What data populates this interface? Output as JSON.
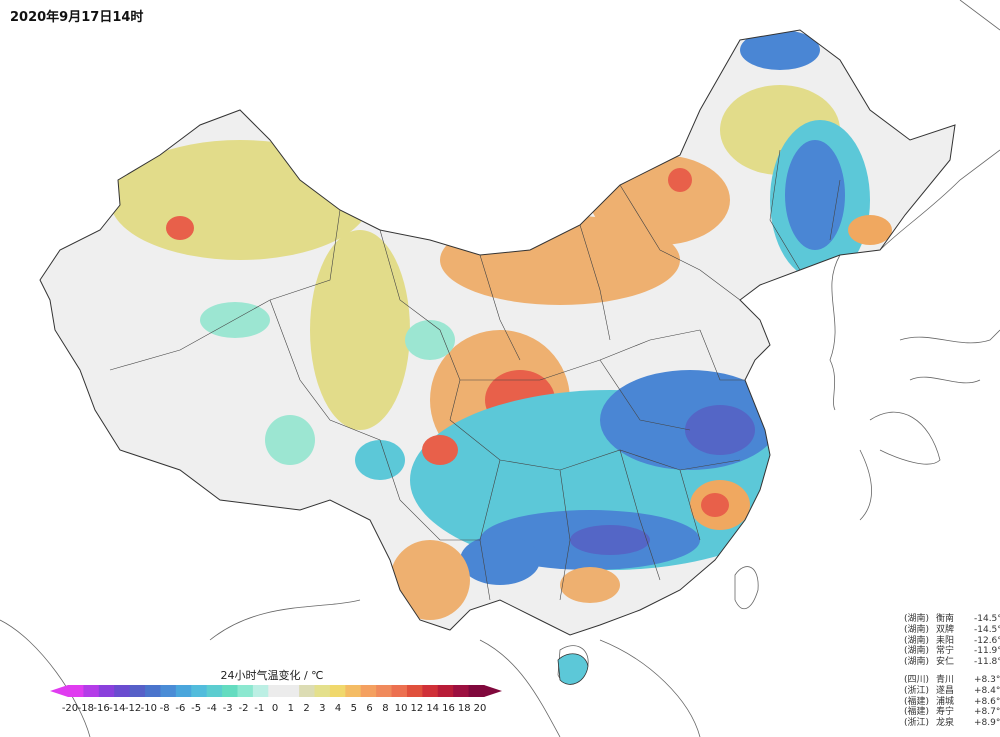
{
  "title": "2020年9月17日14时",
  "legend": {
    "title": "24小时气温变化 / ℃",
    "ticks": [
      "-20",
      "-18",
      "-16",
      "-14",
      "-12",
      "-10",
      "-8",
      "-6",
      "-5",
      "-4",
      "-3",
      "-2",
      "-1",
      "0",
      "1",
      "2",
      "3",
      "4",
      "5",
      "6",
      "8",
      "10",
      "12",
      "14",
      "16",
      "18",
      "20"
    ],
    "colors": [
      "#e03cf0",
      "#b43ce8",
      "#8a40dc",
      "#6a4cd0",
      "#5660c8",
      "#4a74cc",
      "#4a8cd6",
      "#4aa6dc",
      "#52bcdc",
      "#5ccdd0",
      "#64dcc0",
      "#8ce8d0",
      "#bcefe4",
      "#ececec",
      "#ececec",
      "#dcdcb4",
      "#e4e08c",
      "#f0d86c",
      "#f4bc64",
      "#f4a060",
      "#f08a5c",
      "#ec7050",
      "#e0503c",
      "#d03038",
      "#b81c38",
      "#9c1040",
      "#80083c"
    ]
  },
  "stations": {
    "cooling": [
      {
        "province": "(湖南)",
        "name": "衡南",
        "value": "-14.5°C"
      },
      {
        "province": "(湖南)",
        "name": "双牌",
        "value": "-14.5°C"
      },
      {
        "province": "(湖南)",
        "name": "耒阳",
        "value": "-12.6°C"
      },
      {
        "province": "(湖南)",
        "name": "常宁",
        "value": "-11.9°C"
      },
      {
        "province": "(湖南)",
        "name": "安仁",
        "value": "-11.8°C"
      }
    ],
    "warming": [
      {
        "province": "(四川)",
        "name": "青川",
        "value": "+8.3°C"
      },
      {
        "province": "(浙江)",
        "name": "遂昌",
        "value": "+8.4°C"
      },
      {
        "province": "(福建)",
        "name": "浦城",
        "value": "+8.6°C"
      },
      {
        "province": "(福建)",
        "name": "寿宁",
        "value": "+8.7°C"
      },
      {
        "province": "(浙江)",
        "name": "龙泉",
        "value": "+8.9°C"
      }
    ]
  },
  "map_colors": {
    "neutral": "#efefef",
    "slight_warm": "#e2dc8a",
    "warm": "#f0a860",
    "hot": "#e8604a",
    "slight_cool": "#9ce6d2",
    "cool": "#5cc8d8",
    "cold": "#4a86d4",
    "very_cold": "#5466c6",
    "border": "#333333"
  }
}
